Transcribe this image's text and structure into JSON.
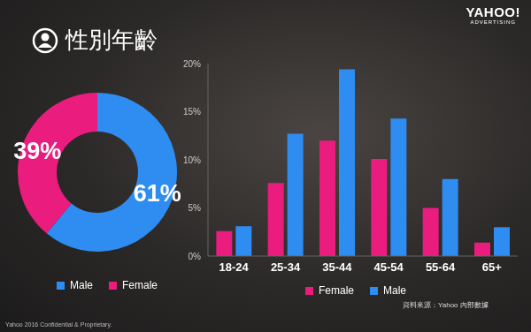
{
  "title": "性別年齡",
  "logo": {
    "brand": "YAHOO!",
    "unit": "ADVERTISING"
  },
  "footer": "Yahoo 2016 Confidential & Proprietary.",
  "source": "資料來源：Yahoo 內部數據",
  "chart_data": [
    {
      "type": "pie",
      "categories": [
        "Male",
        "Female"
      ],
      "values": [
        61,
        39
      ],
      "value_labels": [
        "61%",
        "39%"
      ],
      "colors": [
        "#2f8cf0",
        "#ea1c7e"
      ],
      "data_labels": true,
      "legend": "bottom"
    },
    {
      "type": "bar",
      "categories": [
        "18-24",
        "25-34",
        "35-44",
        "45-54",
        "55-64",
        "65+"
      ],
      "series": [
        {
          "name": "Female",
          "color": "#ea1c7e",
          "values": [
            2.6,
            7.6,
            12,
            10.1,
            5,
            1.4
          ]
        },
        {
          "name": "Male",
          "color": "#2f8cf0",
          "values": [
            3.1,
            12.7,
            19.4,
            14.3,
            8,
            3
          ]
        }
      ],
      "ylim": [
        0,
        20
      ],
      "yticks": [
        {
          "value": 0,
          "label": "0%"
        },
        {
          "value": 5,
          "label": "5%"
        },
        {
          "value": 10,
          "label": "10%"
        },
        {
          "value": 15,
          "label": "15%"
        },
        {
          "value": 20,
          "label": "20%"
        }
      ],
      "grid": false,
      "legend": "bottom"
    }
  ]
}
